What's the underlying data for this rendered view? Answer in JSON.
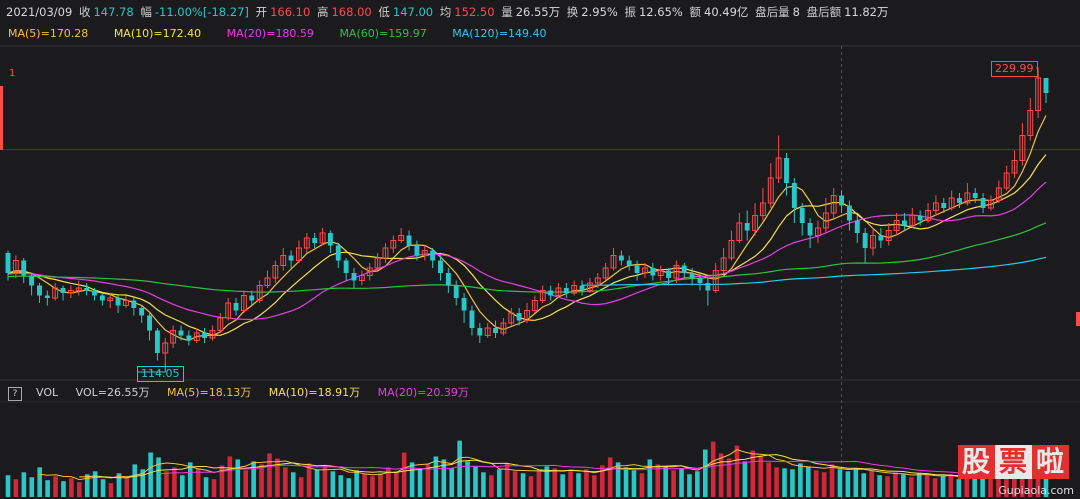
{
  "info": {
    "date": "2021/03/09",
    "close_label": "收",
    "close": "147.78",
    "chg_label": "幅",
    "chg": "-11.00%[-18.27]",
    "open_label": "开",
    "open": "166.10",
    "high_label": "高",
    "high": "168.00",
    "low_label": "低",
    "low": "147.00",
    "avg_label": "均",
    "avg": "152.50",
    "vol_label": "量",
    "vol": "26.55万",
    "turn_label": "换",
    "turn": "2.95%",
    "amp_label": "振",
    "amp": "12.65%",
    "amt_label": "额",
    "amt": "40.49亿",
    "after_vol_label": "盘后量",
    "after_vol": "8",
    "after_amt_label": "盘后额",
    "after_amt": "11.82万"
  },
  "ma_legend": [
    {
      "text": "MA(5)=170.28",
      "color": "#f0c040"
    },
    {
      "text": "MA(10)=172.40",
      "color": "#f5e050"
    },
    {
      "text": "MA(20)=180.59",
      "color": "#e040e0"
    },
    {
      "text": "MA(60)=159.97",
      "color": "#30c040"
    },
    {
      "text": "MA(120)=149.40",
      "color": "#30c8e8"
    }
  ],
  "vol_legend": {
    "help": "?",
    "vol_title": "VOL",
    "vol": "VOL=26.55万",
    "ma5": "MA(5)=18.13万",
    "ma10": "MA(10)=18.91万",
    "ma20": "MA(20)=20.39万"
  },
  "markers": {
    "high": "229.99",
    "low": "114.05",
    "axis_label": "1"
  },
  "watermark": {
    "c1": "股",
    "c2": "票",
    "c3": "啦",
    "site": "Gupiaola.com"
  },
  "colors": {
    "up": "#ff4a4a",
    "down": "#29c7c7",
    "background": "#1b1b1e"
  },
  "chart_data": [
    {
      "type": "candlestick",
      "title": "",
      "ylim": [
        108,
        236
      ],
      "high_marker": 229.99,
      "low_marker": 114.05,
      "candles": [
        [
          158,
          150,
          159,
          147
        ],
        [
          150,
          155,
          157,
          148
        ],
        [
          155,
          149,
          156,
          146
        ],
        [
          149,
          145,
          150,
          141
        ],
        [
          145,
          141,
          146,
          138
        ],
        [
          141,
          140,
          143,
          137
        ],
        [
          140,
          144,
          146,
          139
        ],
        [
          144,
          142,
          145,
          139
        ],
        [
          142,
          143,
          145,
          140
        ],
        [
          143,
          144,
          147,
          141
        ],
        [
          144,
          143,
          146,
          141
        ],
        [
          143,
          141,
          144,
          139
        ],
        [
          141,
          139,
          142,
          137
        ],
        [
          139,
          140,
          142,
          136
        ],
        [
          140,
          137,
          141,
          134
        ],
        [
          137,
          139,
          141,
          136
        ],
        [
          139,
          136,
          140,
          133
        ],
        [
          136,
          133,
          137,
          130
        ],
        [
          133,
          127,
          134,
          123
        ],
        [
          127,
          118,
          128,
          115
        ],
        [
          118,
          122,
          124,
          114
        ],
        [
          122,
          127,
          129,
          120
        ],
        [
          127,
          125,
          129,
          123
        ],
        [
          125,
          123,
          127,
          121
        ],
        [
          123,
          126,
          128,
          122
        ],
        [
          126,
          124,
          128,
          122
        ],
        [
          124,
          127,
          129,
          123
        ],
        [
          127,
          132,
          134,
          126
        ],
        [
          132,
          138,
          140,
          131
        ],
        [
          138,
          135,
          140,
          133
        ],
        [
          135,
          141,
          143,
          134
        ],
        [
          141,
          139,
          143,
          137
        ],
        [
          139,
          145,
          147,
          138
        ],
        [
          145,
          148,
          151,
          144
        ],
        [
          148,
          153,
          155,
          146
        ],
        [
          153,
          157,
          160,
          151
        ],
        [
          157,
          155,
          159,
          152
        ],
        [
          155,
          160,
          163,
          154
        ],
        [
          160,
          164,
          166,
          158
        ],
        [
          164,
          162,
          166,
          160
        ],
        [
          162,
          166,
          168,
          161
        ],
        [
          166,
          161,
          167,
          158
        ],
        [
          161,
          155,
          162,
          152
        ],
        [
          155,
          150,
          156,
          147
        ],
        [
          150,
          147,
          152,
          144
        ],
        [
          147,
          149,
          151,
          145
        ],
        [
          149,
          152,
          154,
          147
        ],
        [
          152,
          156,
          158,
          151
        ],
        [
          156,
          160,
          162,
          154
        ],
        [
          160,
          163,
          165,
          158
        ],
        [
          163,
          165,
          168,
          162
        ],
        [
          165,
          161,
          167,
          159
        ],
        [
          161,
          157,
          163,
          155
        ],
        [
          157,
          159,
          161,
          155
        ],
        [
          159,
          155,
          160,
          152
        ],
        [
          155,
          150,
          157,
          147
        ],
        [
          150,
          145,
          152,
          142
        ],
        [
          145,
          140,
          147,
          137
        ],
        [
          140,
          135,
          142,
          130
        ],
        [
          135,
          128,
          137,
          125
        ],
        [
          128,
          125,
          130,
          122
        ],
        [
          125,
          128,
          130,
          124
        ],
        [
          128,
          126,
          131,
          124
        ],
        [
          126,
          130,
          132,
          125
        ],
        [
          130,
          134,
          136,
          129
        ],
        [
          134,
          131,
          136,
          129
        ],
        [
          131,
          135,
          138,
          130
        ],
        [
          135,
          139,
          141,
          134
        ],
        [
          139,
          143,
          145,
          138
        ],
        [
          143,
          141,
          145,
          139
        ],
        [
          141,
          144,
          146,
          140
        ],
        [
          144,
          142,
          146,
          140
        ],
        [
          142,
          145,
          147,
          141
        ],
        [
          145,
          143,
          147,
          141
        ],
        [
          143,
          146,
          148,
          142
        ],
        [
          146,
          148,
          150,
          144
        ],
        [
          148,
          152,
          154,
          147
        ],
        [
          152,
          157,
          160,
          151
        ],
        [
          157,
          155,
          159,
          153
        ],
        [
          155,
          153,
          157,
          151
        ],
        [
          153,
          150,
          155,
          147
        ],
        [
          150,
          152,
          154,
          148
        ],
        [
          152,
          149,
          154,
          147
        ],
        [
          149,
          151,
          153,
          147
        ],
        [
          151,
          148,
          152,
          145
        ],
        [
          148,
          153,
          155,
          146
        ],
        [
          153,
          150,
          154,
          148
        ],
        [
          150,
          148,
          152,
          145
        ],
        [
          148,
          146,
          150,
          143
        ],
        [
          146,
          143,
          148,
          137
        ],
        [
          143,
          151,
          154,
          142
        ],
        [
          151,
          156,
          160,
          150
        ],
        [
          156,
          163,
          167,
          155
        ],
        [
          163,
          170,
          174,
          162
        ],
        [
          170,
          167,
          175,
          163
        ],
        [
          167,
          173,
          178,
          165
        ],
        [
          173,
          178,
          184,
          171
        ],
        [
          178,
          188,
          194,
          176
        ],
        [
          188,
          196,
          205,
          186
        ],
        [
          196,
          186,
          198,
          181
        ],
        [
          186,
          176,
          188,
          170
        ],
        [
          176,
          170,
          178,
          165
        ],
        [
          170,
          165,
          172,
          160
        ],
        [
          165,
          168,
          171,
          162
        ],
        [
          168,
          174,
          180,
          166
        ],
        [
          174,
          181,
          184,
          172
        ],
        [
          181,
          177,
          183,
          174
        ],
        [
          177,
          171,
          179,
          167
        ],
        [
          171,
          166,
          173,
          162
        ],
        [
          166,
          160,
          168,
          154
        ],
        [
          160,
          165,
          168,
          157
        ],
        [
          165,
          163,
          168,
          160
        ],
        [
          163,
          167,
          170,
          161
        ],
        [
          167,
          171,
          174,
          165
        ],
        [
          171,
          169,
          174,
          167
        ],
        [
          169,
          173,
          176,
          168
        ],
        [
          173,
          171,
          175,
          169
        ],
        [
          171,
          175,
          178,
          170
        ],
        [
          175,
          178,
          181,
          173
        ],
        [
          178,
          176,
          180,
          174
        ],
        [
          176,
          180,
          183,
          175
        ],
        [
          180,
          178,
          182,
          176
        ],
        [
          178,
          182,
          186,
          177
        ],
        [
          182,
          180,
          184,
          178
        ],
        [
          180,
          176,
          182,
          174
        ],
        [
          176,
          179,
          181,
          175
        ],
        [
          179,
          184,
          187,
          178
        ],
        [
          184,
          190,
          193,
          183
        ],
        [
          190,
          195,
          199,
          188
        ],
        [
          195,
          205,
          210,
          193
        ],
        [
          205,
          215,
          220,
          203
        ],
        [
          215,
          228,
          229.99,
          212
        ],
        [
          228,
          222,
          227,
          218
        ]
      ],
      "overlays": [
        {
          "name": "MA(5)",
          "color": "#f0c040",
          "last": 170.28
        },
        {
          "name": "MA(10)",
          "color": "#f5e050",
          "last": 172.4
        },
        {
          "name": "MA(20)",
          "color": "#e040e0",
          "last": 180.59
        },
        {
          "name": "MA(60)",
          "color": "#30c040",
          "last": 159.97
        },
        {
          "name": "MA(120)",
          "color": "#30c8e8",
          "last": 149.4
        }
      ]
    },
    {
      "type": "bar",
      "title": "VOL",
      "ylabel": "",
      "ylim": [
        0,
        90
      ],
      "unit": "万",
      "values": [
        22,
        18,
        25,
        20,
        30,
        17,
        21,
        16,
        19,
        15,
        23,
        26,
        18,
        14,
        24,
        20,
        33,
        28,
        45,
        40,
        26,
        30,
        22,
        35,
        29,
        20,
        18,
        32,
        41,
        38,
        27,
        36,
        33,
        44,
        39,
        30,
        25,
        20,
        34,
        28,
        31,
        26,
        22,
        19,
        27,
        23,
        21,
        24,
        30,
        26,
        45,
        35,
        28,
        33,
        41,
        38,
        29,
        57,
        36,
        31,
        25,
        22,
        28,
        34,
        26,
        24,
        21,
        27,
        31,
        29,
        23,
        26,
        24,
        28,
        22,
        32,
        40,
        35,
        30,
        27,
        24,
        38,
        33,
        31,
        27,
        29,
        23,
        26,
        48,
        56,
        44,
        39,
        52,
        36,
        47,
        42,
        35,
        30,
        29,
        28,
        34,
        31,
        27,
        25,
        33,
        28,
        26,
        29,
        24,
        27,
        22,
        21,
        25,
        23,
        20,
        24,
        22,
        19,
        21,
        23,
        18,
        20,
        26,
        24,
        22,
        28,
        30,
        34,
        40,
        47,
        52,
        46
      ],
      "overlays": [
        {
          "name": "MA(5)",
          "color": "#f0c040",
          "last": 18.13
        },
        {
          "name": "MA(10)",
          "color": "#f5e050",
          "last": 18.91
        },
        {
          "name": "MA(20)",
          "color": "#e040e0",
          "last": 20.39
        }
      ]
    }
  ]
}
